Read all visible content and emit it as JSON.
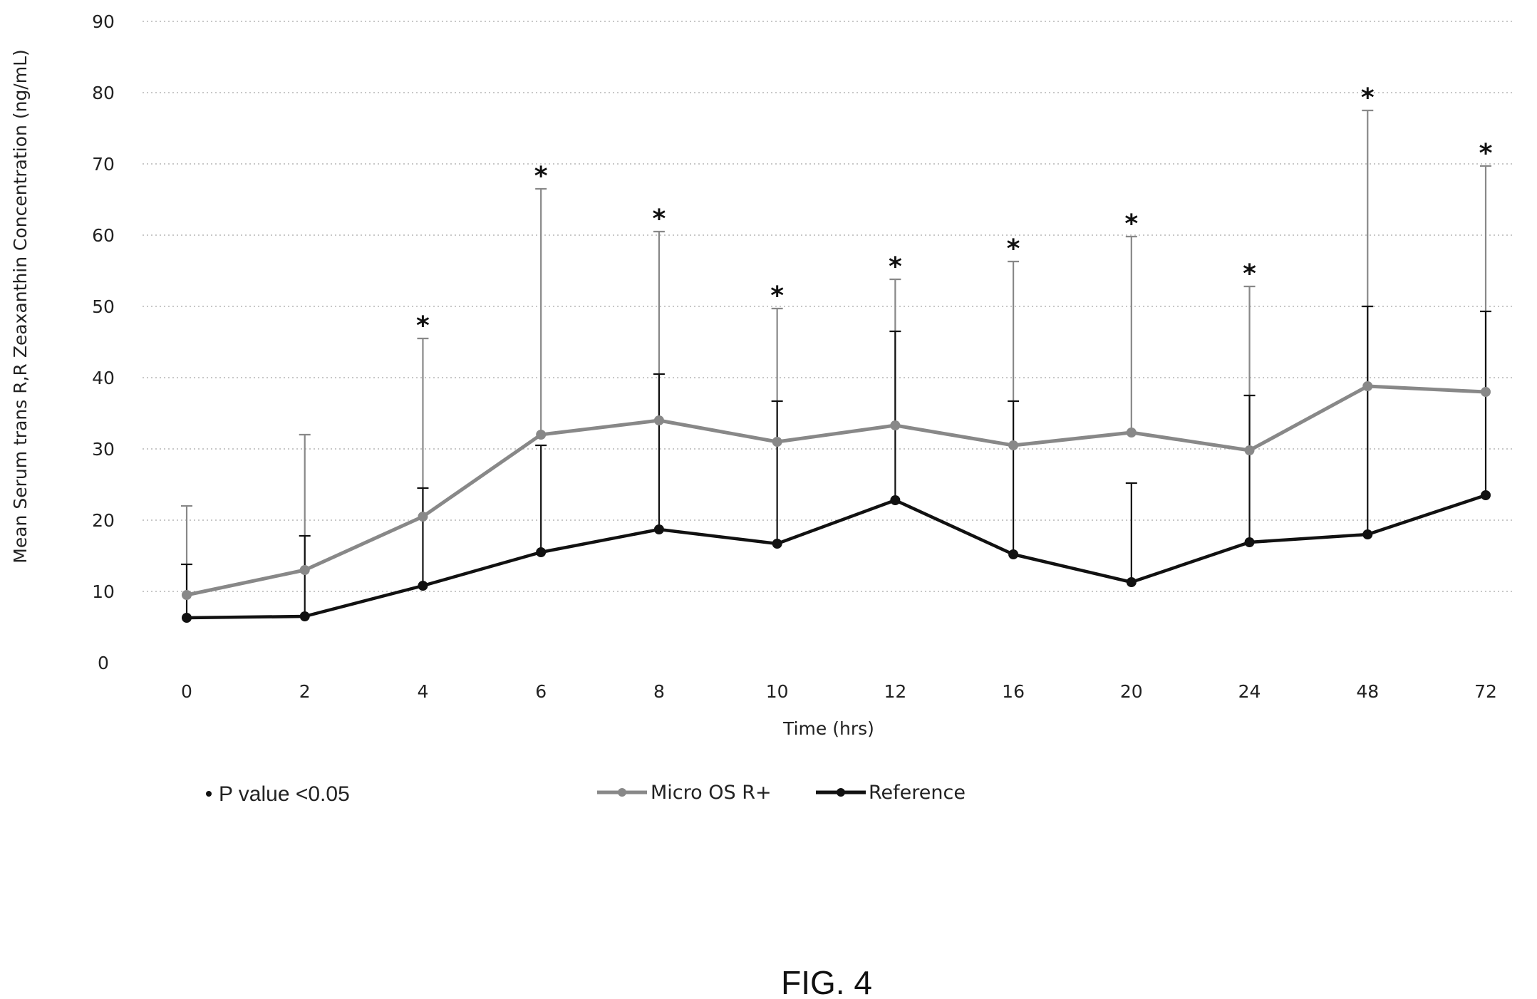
{
  "chart_data": {
    "type": "line",
    "title": "",
    "xlabel": "Time (hrs)",
    "ylabel": "Mean Serum trans R,R Zeaxanthin Concentration (ng/mL)",
    "ylim": [
      0,
      90
    ],
    "yticks": [
      "0",
      "10",
      "20",
      "30",
      "40",
      "50",
      "60",
      "70",
      "80",
      "90"
    ],
    "categories": [
      "0",
      "2",
      "4",
      "6",
      "8",
      "10",
      "12",
      "16",
      "20",
      "24",
      "48",
      "72"
    ],
    "grid": "horizontal dotted",
    "legend_position": "bottom",
    "series": [
      {
        "name": "Micro OS R+",
        "color": "#888888",
        "values": [
          9.5,
          13,
          20.5,
          32,
          34,
          31,
          33.3,
          30.5,
          32.3,
          29.8,
          38.8,
          38
        ],
        "error_upper": [
          22,
          32,
          45.5,
          66.5,
          60.5,
          49.7,
          53.8,
          56.3,
          59.8,
          52.8,
          77.5,
          69.7
        ]
      },
      {
        "name": "Reference",
        "color": "#111111",
        "values": [
          6.3,
          6.5,
          10.8,
          15.5,
          18.7,
          16.7,
          22.8,
          15.2,
          11.3,
          16.9,
          18,
          23.5
        ],
        "error_upper": [
          13.8,
          17.8,
          24.5,
          30.5,
          40.5,
          36.7,
          46.5,
          36.7,
          25.2,
          37.5,
          50,
          49.3
        ]
      }
    ],
    "significance_marker": "*",
    "significant_at": [
      "4",
      "6",
      "8",
      "10",
      "12",
      "16",
      "20",
      "24",
      "48",
      "72"
    ],
    "note": "* P value <0.05"
  },
  "figure_label": "FIG. 4"
}
